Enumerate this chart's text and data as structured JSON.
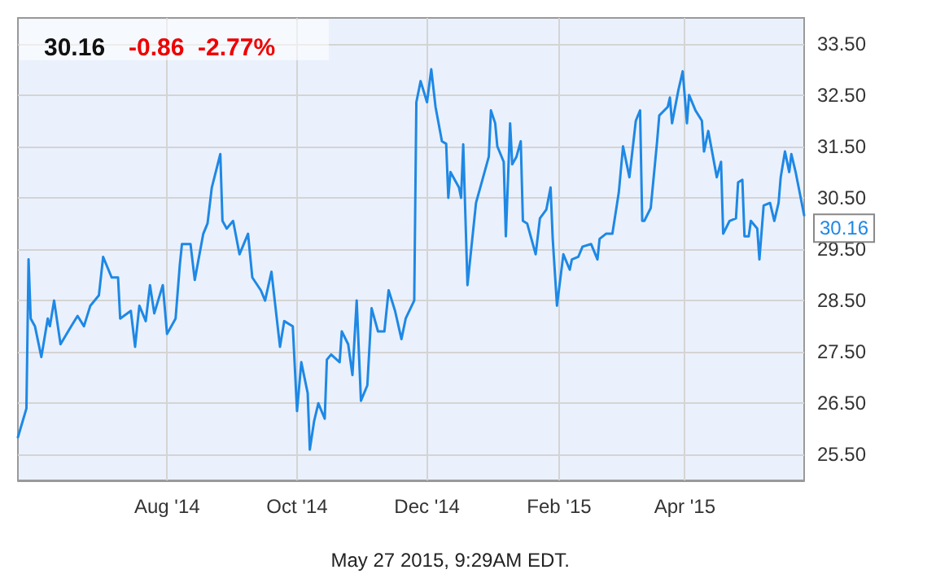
{
  "chart_data": {
    "type": "line",
    "title": "30.16",
    "subtitle": "-0.86  -2.77%",
    "x": [
      "2014-05-23",
      "2014-05-27",
      "2014-05-28",
      "2014-05-29",
      "2014-05-31",
      "2014-06-03",
      "2014-06-06",
      "2014-06-07",
      "2014-06-09",
      "2014-06-12",
      "2014-06-17",
      "2014-06-20",
      "2014-06-23",
      "2014-06-26",
      "2014-06-30",
      "2014-07-02",
      "2014-07-06",
      "2014-07-09",
      "2014-07-10",
      "2014-07-15",
      "2014-07-17",
      "2014-07-19",
      "2014-07-22",
      "2014-07-24",
      "2014-07-26",
      "2014-07-30",
      "2014-08-01",
      "2014-08-05",
      "2014-08-07",
      "2014-08-08",
      "2014-08-12",
      "2014-08-14",
      "2014-08-18",
      "2014-08-20",
      "2014-08-22",
      "2014-08-26",
      "2014-08-27",
      "2014-08-29",
      "2014-09-01",
      "2014-09-04",
      "2014-09-08",
      "2014-09-10",
      "2014-09-14",
      "2014-09-16",
      "2014-09-19",
      "2014-09-23",
      "2014-09-25",
      "2014-09-29",
      "2014-10-01",
      "2014-10-03",
      "2014-10-06",
      "2014-10-07",
      "2014-10-09",
      "2014-10-11",
      "2014-10-14",
      "2014-10-15",
      "2014-10-17",
      "2014-10-21",
      "2014-10-22",
      "2014-10-25",
      "2014-10-27",
      "2014-10-29",
      "2014-10-31",
      "2014-11-03",
      "2014-11-05",
      "2014-11-08",
      "2014-11-11",
      "2014-11-13",
      "2014-11-16",
      "2014-11-19",
      "2014-11-21",
      "2014-11-25",
      "2014-11-26",
      "2014-11-28",
      "2014-12-01",
      "2014-12-03",
      "2014-12-05",
      "2014-12-08",
      "2014-12-10",
      "2014-12-11",
      "2014-12-12",
      "2014-12-16",
      "2014-12-17",
      "2014-12-18",
      "2014-12-20",
      "2014-12-24",
      "2014-12-27",
      "2014-12-30",
      "2014-12-31",
      "2015-01-02",
      "2015-01-03",
      "2015-01-06",
      "2015-01-07",
      "2015-01-09",
      "2015-01-10",
      "2015-01-12",
      "2015-01-14",
      "2015-01-15",
      "2015-01-17",
      "2015-01-21",
      "2015-01-23",
      "2015-01-26",
      "2015-01-28",
      "2015-01-29",
      "2015-01-31",
      "2015-02-03",
      "2015-02-06",
      "2015-02-07",
      "2015-02-10",
      "2015-02-12",
      "2015-02-16",
      "2015-02-19",
      "2015-02-20",
      "2015-02-23",
      "2015-02-26",
      "2015-03-01",
      "2015-03-03",
      "2015-03-06",
      "2015-03-09",
      "2015-03-11",
      "2015-03-12",
      "2015-03-13",
      "2015-03-16",
      "2015-03-19",
      "2015-03-20",
      "2015-03-24",
      "2015-03-25",
      "2015-03-26",
      "2015-03-29",
      "2015-03-31",
      "2015-04-02",
      "2015-04-03",
      "2015-04-06",
      "2015-04-09",
      "2015-04-10",
      "2015-04-12",
      "2015-04-16",
      "2015-04-18",
      "2015-04-19",
      "2015-04-22",
      "2015-04-25",
      "2015-04-26",
      "2015-04-28",
      "2015-04-29",
      "2015-05-01",
      "2015-05-02",
      "2015-05-05",
      "2015-05-06",
      "2015-05-08",
      "2015-05-11",
      "2015-05-13",
      "2015-05-15",
      "2015-05-16",
      "2015-05-18",
      "2015-05-20",
      "2015-05-21",
      "2015-05-23",
      "2015-05-27"
    ],
    "series": [
      {
        "color": "#1e88e5",
        "values": [
          25.84,
          26.4,
          29.3,
          28.15,
          28.0,
          27.4,
          28.15,
          28.0,
          28.5,
          27.65,
          28.0,
          28.2,
          28.0,
          28.4,
          28.6,
          29.35,
          28.95,
          28.95,
          28.15,
          28.3,
          27.6,
          28.4,
          28.1,
          28.8,
          28.25,
          28.8,
          27.85,
          28.15,
          29.2,
          29.6,
          29.6,
          28.9,
          29.8,
          30.0,
          30.7,
          31.35,
          30.05,
          29.9,
          30.05,
          29.4,
          29.8,
          28.95,
          28.7,
          28.5,
          29.06,
          27.6,
          28.1,
          28.0,
          26.35,
          27.3,
          26.7,
          25.6,
          26.15,
          26.5,
          26.2,
          27.35,
          27.45,
          27.3,
          27.9,
          27.65,
          27.05,
          28.5,
          26.55,
          26.85,
          28.35,
          27.9,
          27.9,
          28.7,
          28.3,
          27.75,
          28.15,
          28.5,
          32.36,
          32.77,
          32.36,
          33.0,
          32.27,
          31.6,
          31.55,
          30.5,
          31.0,
          30.7,
          30.5,
          31.54,
          28.8,
          30.4,
          30.85,
          31.3,
          32.2,
          31.95,
          31.5,
          31.2,
          29.75,
          31.95,
          31.15,
          31.3,
          31.6,
          30.05,
          30.0,
          29.4,
          30.1,
          30.27,
          30.7,
          29.7,
          28.4,
          29.4,
          29.1,
          29.3,
          29.35,
          29.55,
          29.6,
          29.3,
          29.7,
          29.8,
          29.8,
          30.6,
          31.5,
          30.9,
          32.0,
          32.2,
          30.05,
          30.05,
          30.3,
          31.6,
          32.1,
          32.27,
          32.45,
          31.95,
          32.6,
          32.96,
          31.95,
          32.5,
          32.2,
          32.0,
          31.4,
          31.8,
          30.9,
          31.2,
          29.8,
          30.05,
          30.1,
          30.8,
          30.85,
          29.75,
          29.75,
          30.05,
          29.9,
          29.3,
          30.35,
          30.4,
          30.05,
          30.4,
          30.9,
          31.4,
          31.0,
          31.35,
          31.0,
          30.16
        ]
      }
    ],
    "xlim": [
      "2014-05-23",
      "2015-05-27"
    ],
    "xticks": [
      {
        "value": "2014-08-01",
        "label": "Aug '14"
      },
      {
        "value": "2014-10-01",
        "label": "Oct '14"
      },
      {
        "value": "2014-12-01",
        "label": "Dec '14"
      },
      {
        "value": "2015-02-01",
        "label": "Feb '15"
      },
      {
        "value": "2015-04-01",
        "label": "Apr '15"
      }
    ],
    "ylim": [
      25,
      34
    ],
    "yticks": [
      {
        "value": 25.5,
        "label": "25.50"
      },
      {
        "value": 26.5,
        "label": "26.50"
      },
      {
        "value": 27.5,
        "label": "27.50"
      },
      {
        "value": 28.5,
        "label": "28.50"
      },
      {
        "value": 29.5,
        "label": "29.50"
      },
      {
        "value": 30.5,
        "label": "30.50"
      },
      {
        "value": 31.5,
        "label": "31.50"
      },
      {
        "value": 32.5,
        "label": "32.50"
      },
      {
        "value": 33.5,
        "label": "33.50"
      }
    ],
    "grid": true,
    "annotations": [
      {
        "text": "30.16",
        "x": "2015-05-27",
        "y": 30.16
      },
      "May 27 2015, 9:29AM EDT."
    ]
  }
}
